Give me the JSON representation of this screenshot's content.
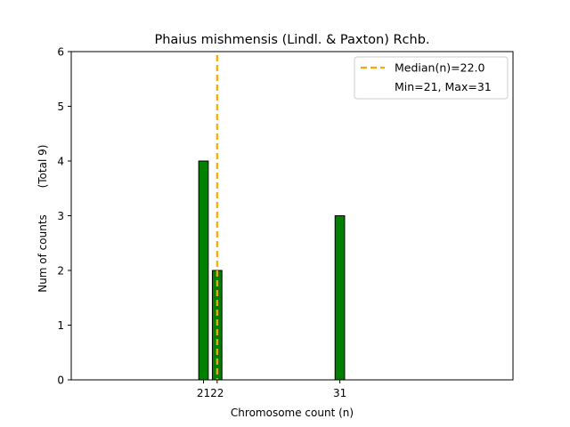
{
  "chart_data": {
    "type": "bar",
    "title": "Phaius mishmensis (Lindl. & Paxton) Rchb.",
    "xlabel": "Chromosome count (n)",
    "ylabel": "Num of counts",
    "ylabel_note": "(Total 9)",
    "x": [
      21,
      22,
      31
    ],
    "values": [
      4,
      2,
      3
    ],
    "xticks": [
      "21",
      "22",
      "31"
    ],
    "yticks": [
      "0",
      "1",
      "2",
      "3",
      "4",
      "5",
      "6"
    ],
    "ylim": [
      0,
      6
    ],
    "xlim": [
      11.3,
      43.7
    ],
    "bar_width": 0.7,
    "median": 22.0,
    "legend": {
      "placement": "top-right",
      "entries": [
        "Median(n)=22.0",
        "Min=21, Max=31"
      ]
    },
    "colors": {
      "bar_fill": "#008000",
      "bar_edge": "#000000",
      "median_line": "#ffa500"
    },
    "grid": false
  }
}
